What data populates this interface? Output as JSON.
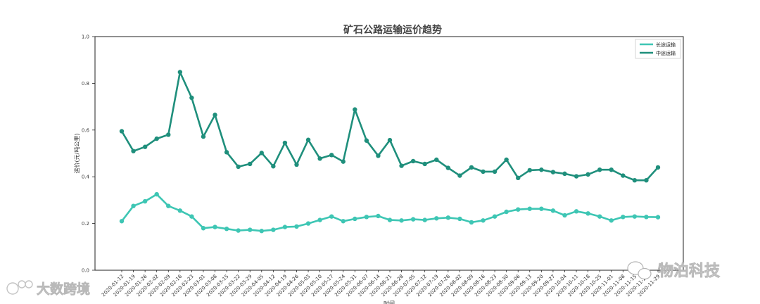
{
  "chart_data": {
    "type": "line",
    "title": "矿石公路运输运价趋势",
    "xlabel": "时间",
    "ylabel": "运价(元/吨公里)",
    "ylim": [
      0.0,
      1.0
    ],
    "yticks": [
      "0.0",
      "0.2",
      "0.4",
      "0.6",
      "0.8",
      "1.0"
    ],
    "legend_position": "top-right",
    "categories": [
      "2020-01-12",
      "2020-01-19",
      "2020-01-26",
      "2020-02-02",
      "2020-02-09",
      "2020-02-16",
      "2020-02-23",
      "2020-03-01",
      "2020-03-08",
      "2020-03-15",
      "2020-03-22",
      "2020-03-29",
      "2020-04-05",
      "2020-04-12",
      "2020-04-19",
      "2020-04-26",
      "2020-05-03",
      "2020-05-10",
      "2020-05-17",
      "2020-05-24",
      "2020-05-31",
      "2020-06-07",
      "2020-06-14",
      "2020-06-21",
      "2020-06-28",
      "2020-07-05",
      "2020-07-12",
      "2020-07-19",
      "2020-07-26",
      "2020-08-02",
      "2020-08-09",
      "2020-08-16",
      "2020-08-23",
      "2020-08-30",
      "2020-09-06",
      "2020-09-13",
      "2020-09-20",
      "2020-09-27",
      "2020-10-04",
      "2020-10-11",
      "2020-10-18",
      "2020-10-25",
      "2020-11-01",
      "2020-11-08",
      "2020-11-15",
      "2020-11-22",
      "2020-11-29"
    ],
    "series": [
      {
        "name": "长途运输",
        "color": "#3ec6b4",
        "values": [
          0.21,
          0.275,
          0.295,
          0.325,
          0.275,
          0.255,
          0.23,
          0.18,
          0.185,
          0.177,
          0.17,
          0.173,
          0.168,
          0.173,
          0.185,
          0.187,
          0.2,
          0.215,
          0.23,
          0.21,
          0.22,
          0.228,
          0.232,
          0.215,
          0.213,
          0.218,
          0.215,
          0.222,
          0.225,
          0.22,
          0.205,
          0.213,
          0.23,
          0.25,
          0.26,
          0.263,
          0.263,
          0.255,
          0.235,
          0.252,
          0.243,
          0.23,
          0.213,
          0.228,
          0.23,
          0.228,
          0.227
        ]
      },
      {
        "name": "中途运输",
        "color": "#1f8f7c",
        "values": [
          0.595,
          0.51,
          0.528,
          0.563,
          0.58,
          0.848,
          0.738,
          0.572,
          0.665,
          0.505,
          0.443,
          0.455,
          0.502,
          0.445,
          0.545,
          0.452,
          0.558,
          0.478,
          0.493,
          0.465,
          0.688,
          0.555,
          0.49,
          0.557,
          0.447,
          0.467,
          0.455,
          0.473,
          0.438,
          0.405,
          0.44,
          0.422,
          0.422,
          0.473,
          0.395,
          0.428,
          0.43,
          0.42,
          0.413,
          0.402,
          0.41,
          0.43,
          0.43,
          0.405,
          0.385,
          0.385,
          0.44
        ]
      }
    ]
  },
  "watermarks": {
    "left": "大数跨境",
    "right": "物泊科技"
  },
  "icons": {
    "left": "logo-icon",
    "right": "wechat-icon"
  }
}
